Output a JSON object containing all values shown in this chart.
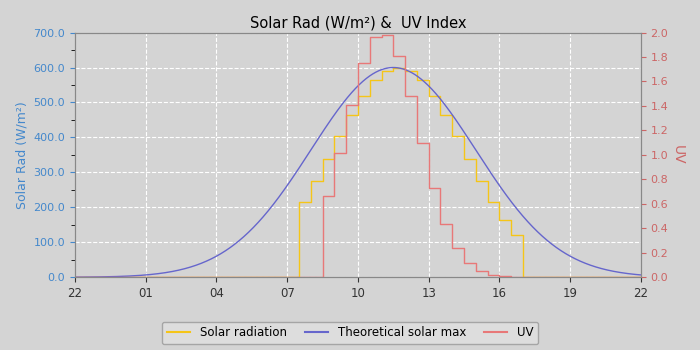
{
  "title": "Solar Rad (W/m²) &  UV Index",
  "ylabel_left": "Solar Rad (W/m²)",
  "ylabel_right": "UV",
  "x_tick_labels": [
    "22",
    "01",
    "04",
    "07",
    "10",
    "13",
    "16",
    "19",
    "22"
  ],
  "ylim_left": [
    0,
    700
  ],
  "ylim_right": [
    0,
    2.0
  ],
  "yticks_left": [
    0.0,
    100.0,
    200.0,
    300.0,
    400.0,
    500.0,
    600.0,
    700.0
  ],
  "yticks_right": [
    0.0,
    0.2,
    0.4,
    0.6,
    0.8,
    1.0,
    1.2,
    1.4,
    1.6,
    1.8,
    2.0
  ],
  "xlim": [
    22,
    46
  ],
  "x_tick_positions": [
    22,
    25,
    28,
    31,
    34,
    37,
    40,
    43,
    46
  ],
  "solar_peak_x": 35.5,
  "solar_max": 600.0,
  "solar_sigma": 2.8,
  "theoretical_peak_x": 35.5,
  "theoretical_max": 600.0,
  "theoretical_sigma": 3.5,
  "uv_peak_x": 34.8,
  "uv_max": 2.0,
  "uv_sigma": 1.55,
  "solar_start_x": 31.5,
  "solar_end_x": 40.5,
  "uv_start_x": 32.5,
  "uv_end_x": 40.0,
  "step_interval": 0.5,
  "bg_color": "#d4d4d4",
  "plot_bg_color": "#d4d4d4",
  "grid_color": "#ffffff",
  "solar_color": "#f5c518",
  "theoretical_color": "#6666cc",
  "uv_color": "#e87878",
  "left_label_color": "#4488cc",
  "right_label_color": "#cc6666",
  "tick_color": "#333333",
  "spine_color": "#888888",
  "legend_facecolor": "#e0e0e0",
  "legend_edgecolor": "#999999"
}
